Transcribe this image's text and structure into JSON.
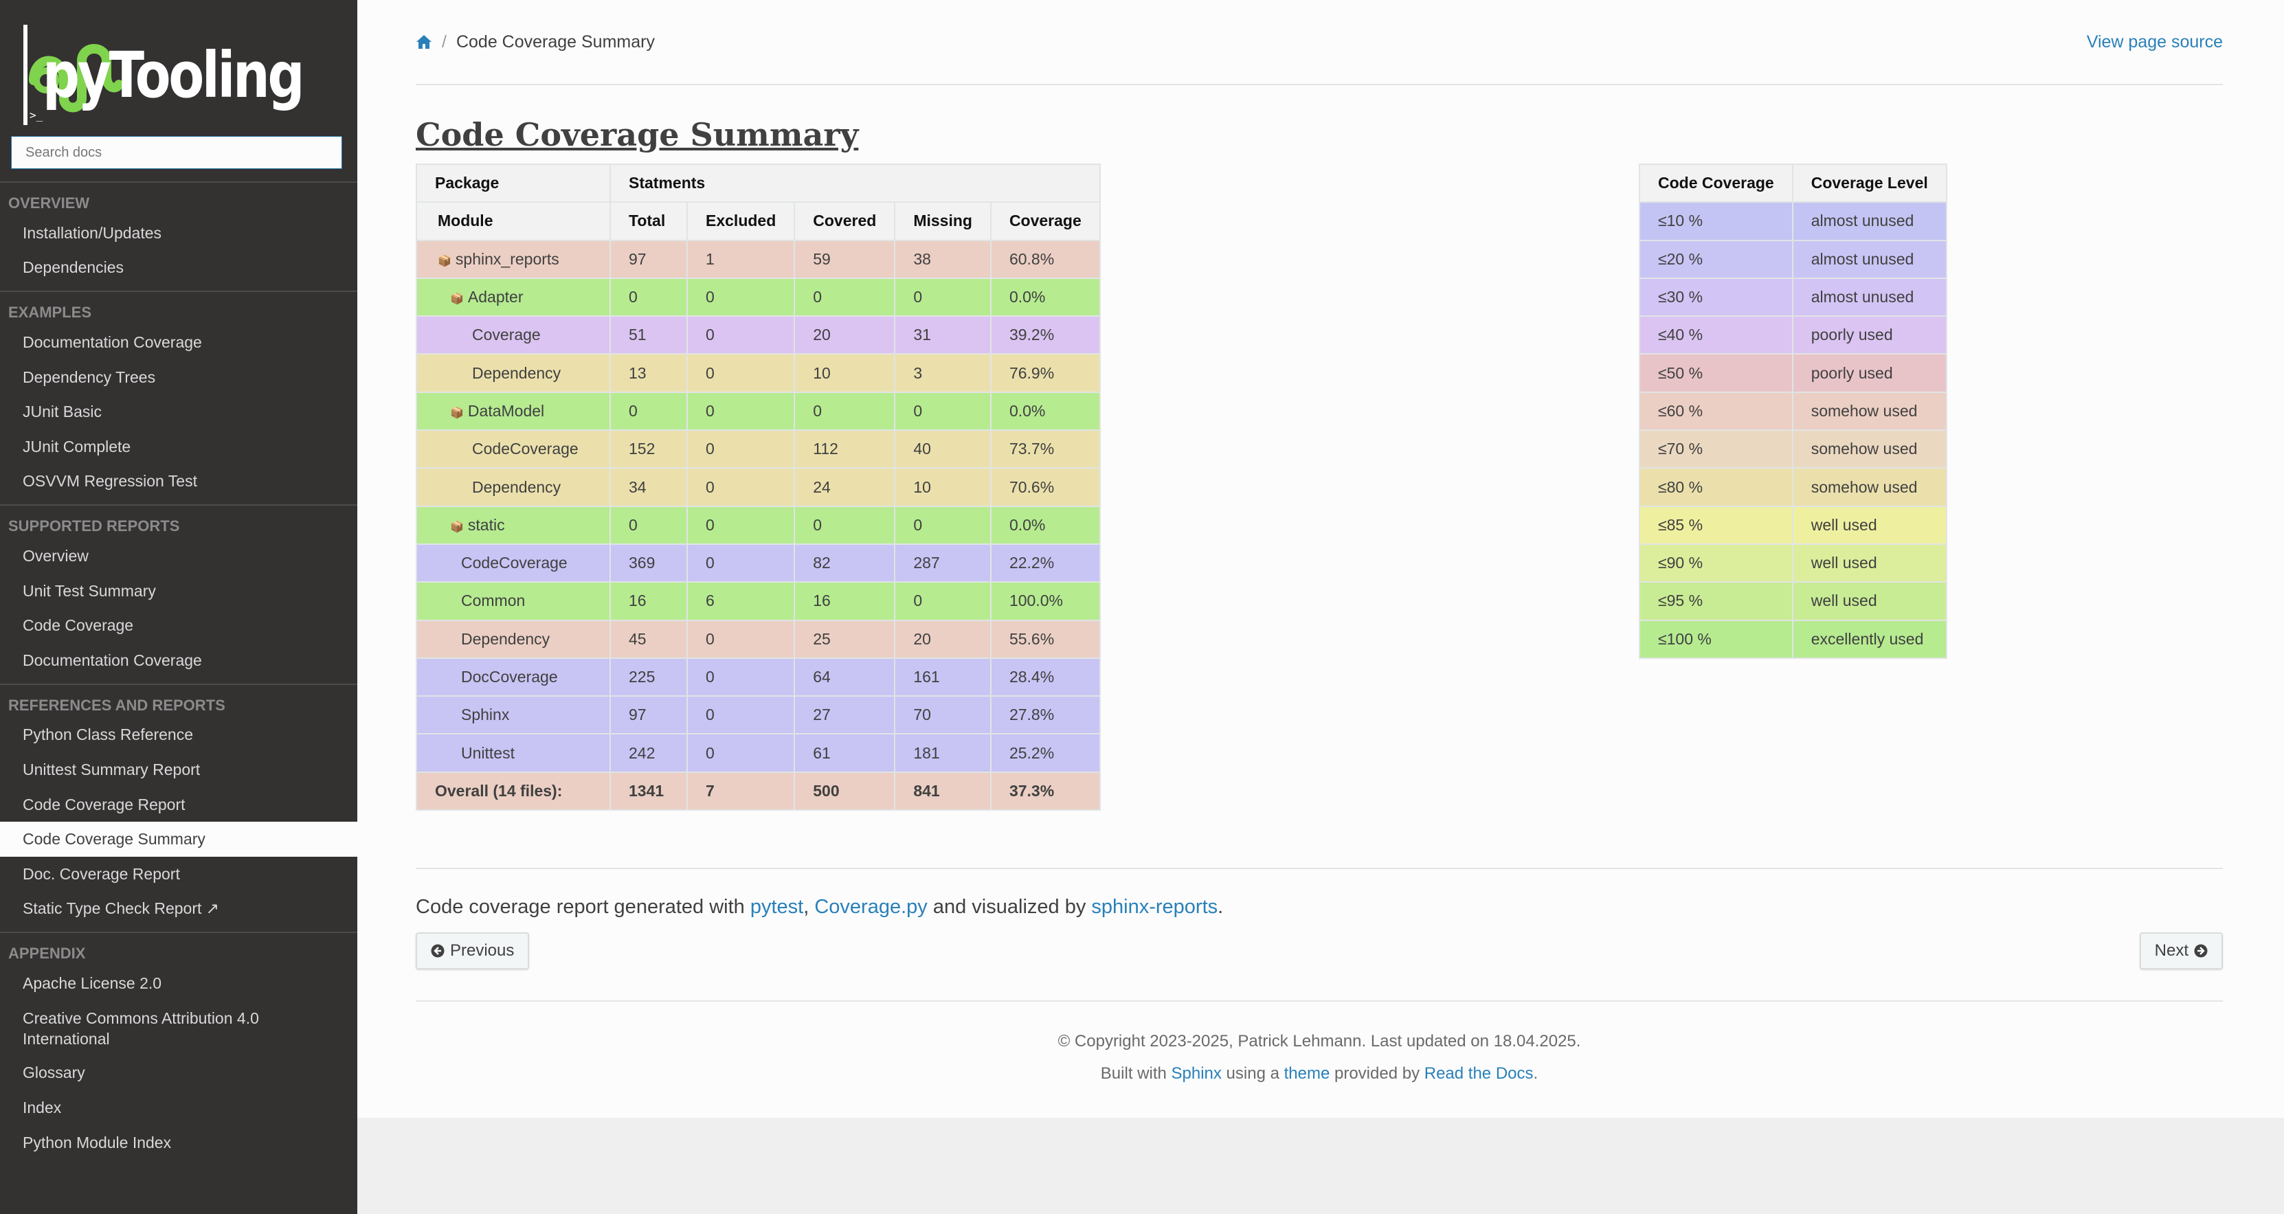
{
  "sidebar": {
    "brand": "pyTooling",
    "logo_prompt": ">_",
    "search_placeholder": "Search docs",
    "sections": [
      {
        "caption": "Overview",
        "items": [
          "Installation/Updates",
          "Dependencies"
        ]
      },
      {
        "caption": "Examples",
        "items": [
          "Documentation Coverage",
          "Dependency Trees",
          "JUnit Basic",
          "JUnit Complete",
          "OSVVM Regression Test"
        ]
      },
      {
        "caption": "Supported Reports",
        "items": [
          "Overview",
          "Unit Test Summary",
          "Code Coverage",
          "Documentation Coverage"
        ]
      },
      {
        "caption": "References and Reports",
        "items": [
          "Python Class Reference",
          "Unittest Summary Report",
          "Code Coverage Report",
          "Code Coverage Summary",
          "Doc. Coverage Report",
          "Static Type Check Report ↗"
        ]
      },
      {
        "caption": "Appendix",
        "items": [
          "Apache License 2.0",
          "Creative Commons Attribution 4.0 International",
          "Glossary",
          "Index",
          "Python Module Index"
        ]
      }
    ],
    "current_item": "Code Coverage Summary"
  },
  "breadcrumbs": {
    "home_icon": "home-icon",
    "current": "Code Coverage Summary",
    "view_source": "View page source"
  },
  "page_title": "Code Coverage Summary",
  "coverage_table": {
    "header_row1": {
      "package": "Package",
      "statements": "Statments"
    },
    "header_row2": [
      "Module",
      "Total",
      "Excluded",
      "Covered",
      "Missing",
      "Coverage"
    ],
    "rows": [
      {
        "name": "sphinx_reports",
        "total": "97",
        "excluded": "1",
        "covered": "59",
        "missing": "38",
        "coverage": "60.8%",
        "level": 0,
        "package": true,
        "color": "#ebcfc4"
      },
      {
        "name": "Adapter",
        "total": "0",
        "excluded": "0",
        "covered": "0",
        "missing": "0",
        "coverage": "0.0%",
        "level": 1,
        "package": true,
        "color": "#b6eb90"
      },
      {
        "name": "Coverage",
        "total": "51",
        "excluded": "0",
        "covered": "20",
        "missing": "31",
        "coverage": "39.2%",
        "level": 2,
        "package": false,
        "color": "#dbc4f1"
      },
      {
        "name": "Dependency",
        "total": "13",
        "excluded": "0",
        "covered": "10",
        "missing": "3",
        "coverage": "76.9%",
        "level": 2,
        "package": false,
        "color": "#ebe0ac"
      },
      {
        "name": "DataModel",
        "total": "0",
        "excluded": "0",
        "covered": "0",
        "missing": "0",
        "coverage": "0.0%",
        "level": 1,
        "package": true,
        "color": "#b6eb90"
      },
      {
        "name": "CodeCoverage",
        "total": "152",
        "excluded": "0",
        "covered": "112",
        "missing": "40",
        "coverage": "73.7%",
        "level": 2,
        "package": false,
        "color": "#ebe0ac"
      },
      {
        "name": "Dependency",
        "total": "34",
        "excluded": "0",
        "covered": "24",
        "missing": "10",
        "coverage": "70.6%",
        "level": 2,
        "package": false,
        "color": "#ebe0ac"
      },
      {
        "name": "static",
        "total": "0",
        "excluded": "0",
        "covered": "0",
        "missing": "0",
        "coverage": "0.0%",
        "level": 1,
        "package": true,
        "color": "#b6eb90"
      },
      {
        "name": "CodeCoverage",
        "total": "369",
        "excluded": "0",
        "covered": "82",
        "missing": "287",
        "coverage": "22.2%",
        "level": 3,
        "package": false,
        "color": "#c8c4f4"
      },
      {
        "name": "Common",
        "total": "16",
        "excluded": "6",
        "covered": "16",
        "missing": "0",
        "coverage": "100.0%",
        "level": 3,
        "package": false,
        "color": "#b6eb90"
      },
      {
        "name": "Dependency",
        "total": "45",
        "excluded": "0",
        "covered": "25",
        "missing": "20",
        "coverage": "55.6%",
        "level": 3,
        "package": false,
        "color": "#ebcfc4"
      },
      {
        "name": "DocCoverage",
        "total": "225",
        "excluded": "0",
        "covered": "64",
        "missing": "161",
        "coverage": "28.4%",
        "level": 3,
        "package": false,
        "color": "#c8c4f4"
      },
      {
        "name": "Sphinx",
        "total": "97",
        "excluded": "0",
        "covered": "27",
        "missing": "70",
        "coverage": "27.8%",
        "level": 3,
        "package": false,
        "color": "#c8c4f4"
      },
      {
        "name": "Unittest",
        "total": "242",
        "excluded": "0",
        "covered": "61",
        "missing": "181",
        "coverage": "25.2%",
        "level": 3,
        "package": false,
        "color": "#c8c4f4"
      }
    ],
    "overall": {
      "name": "Overall (14 files):",
      "total": "1341",
      "excluded": "7",
      "covered": "500",
      "missing": "841",
      "coverage": "37.3%",
      "color": "#ebcfc4"
    }
  },
  "legend_table": {
    "headers": [
      "Code Coverage",
      "Coverage Level"
    ],
    "rows": [
      {
        "range": "≤10 %",
        "level": "almost unused",
        "color": "#c4c4f4"
      },
      {
        "range": "≤20 %",
        "level": "almost unused",
        "color": "#c8c4f4"
      },
      {
        "range": "≤30 %",
        "level": "almost unused",
        "color": "#d2c4f4"
      },
      {
        "range": "≤40 %",
        "level": "poorly used",
        "color": "#dbc4f1"
      },
      {
        "range": "≤50 %",
        "level": "poorly used",
        "color": "#e8c4c8"
      },
      {
        "range": "≤60 %",
        "level": "somehow used",
        "color": "#ebcfc4"
      },
      {
        "range": "≤70 %",
        "level": "somehow used",
        "color": "#ebd8c0"
      },
      {
        "range": "≤80 %",
        "level": "somehow used",
        "color": "#ebe0ac"
      },
      {
        "range": "≤85 %",
        "level": "well used",
        "color": "#eef0a0"
      },
      {
        "range": "≤90 %",
        "level": "well used",
        "color": "#dcee9c"
      },
      {
        "range": "≤95 %",
        "level": "well used",
        "color": "#c8ec94"
      },
      {
        "range": "≤100 %",
        "level": "excellently used",
        "color": "#b6eb90"
      }
    ]
  },
  "note": {
    "prefix": "Code coverage report generated with ",
    "link1": "pytest",
    "sep": ", ",
    "link2": "Coverage.py",
    "mid": " and visualized by ",
    "link3": "sphinx-reports",
    "suffix": "."
  },
  "nav_buttons": {
    "previous": "Previous",
    "next": "Next"
  },
  "footer": {
    "copyright": "© Copyright 2023-2025, Patrick Lehmann. Last updated on 18.04.2025.",
    "built_prefix": "Built with ",
    "sphinx": "Sphinx",
    "using": " using a ",
    "theme": "theme",
    "provided": " provided by ",
    "rtd": "Read the Docs",
    "end": "."
  }
}
